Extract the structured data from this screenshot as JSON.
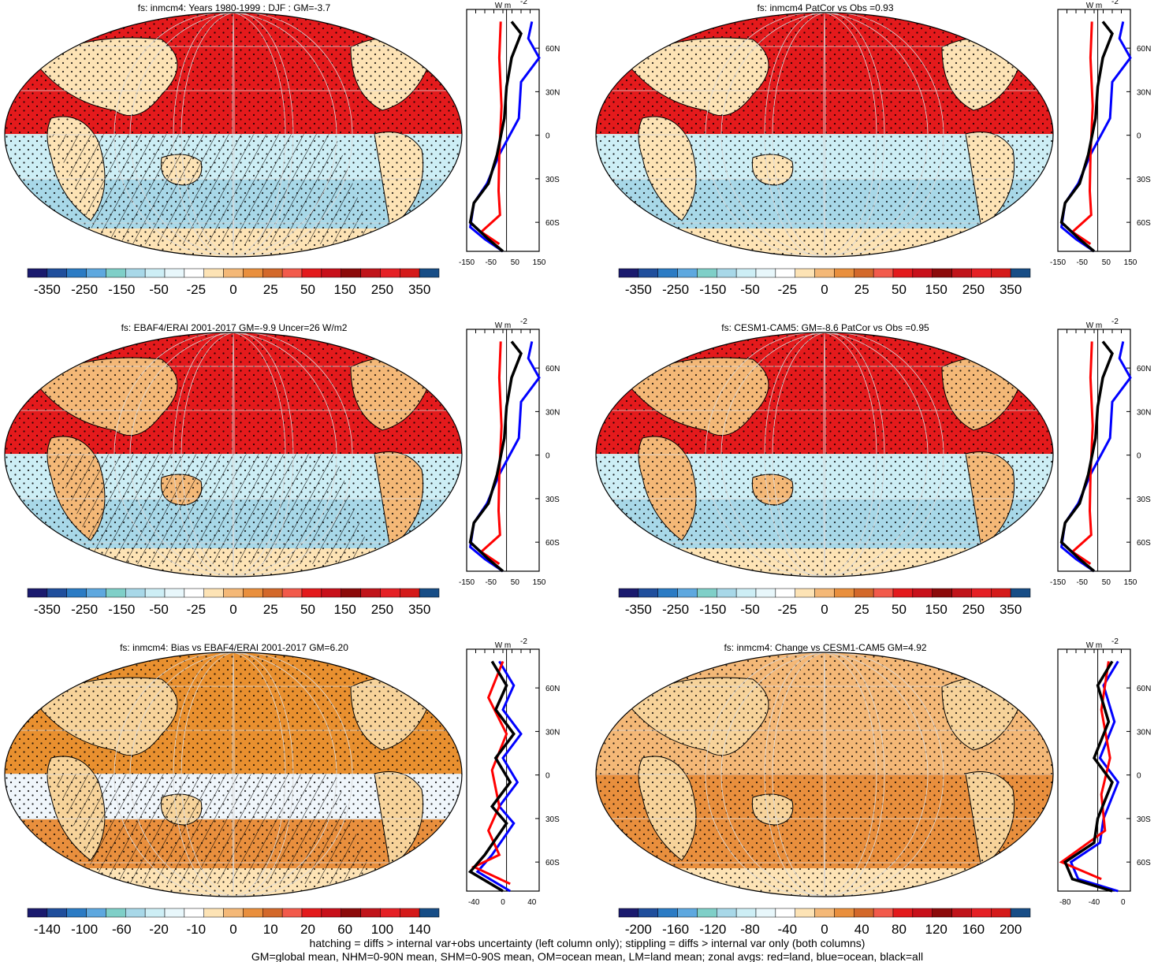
{
  "panels": [
    {
      "title": "fs: inmcm4: Years 1980-1999 : DJF : GM=-3.7",
      "colorbar_labels": [
        "-350",
        "-250",
        "-150",
        "-50",
        "-25",
        "0",
        "25",
        "50",
        "150",
        "250",
        "350"
      ],
      "zonal_ticks": [
        "-150",
        "-50",
        "50",
        "150"
      ],
      "lat_labels": [
        "60N",
        "30N",
        "0",
        "30S",
        "60S"
      ]
    },
    {
      "title": "fs: inmcm4 PatCor vs Obs =0.93",
      "colorbar_labels": [
        "-350",
        "-250",
        "-150",
        "-50",
        "-25",
        "0",
        "25",
        "50",
        "150",
        "250",
        "350"
      ],
      "zonal_ticks": [
        "-150",
        "-50",
        "50",
        "150"
      ],
      "lat_labels": [
        "60N",
        "30N",
        "0",
        "30S",
        "60S"
      ]
    },
    {
      "title": "fs: EBAF4/ERAI 2001-2017 GM=-9.9 Uncer=26 W/m2",
      "colorbar_labels": [
        "-350",
        "-250",
        "-150",
        "-50",
        "-25",
        "0",
        "25",
        "50",
        "150",
        "250",
        "350"
      ],
      "zonal_ticks": [
        "-150",
        "-50",
        "50",
        "150"
      ],
      "lat_labels": [
        "60N",
        "30N",
        "0",
        "30S",
        "60S"
      ]
    },
    {
      "title": "fs: CESM1-CAM5: GM=-8.6 PatCor vs Obs =0.95",
      "colorbar_labels": [
        "-350",
        "-250",
        "-150",
        "-50",
        "-25",
        "0",
        "25",
        "50",
        "150",
        "250",
        "350"
      ],
      "zonal_ticks": [
        "-150",
        "-50",
        "50",
        "150"
      ],
      "lat_labels": [
        "60N",
        "30N",
        "0",
        "30S",
        "60S"
      ]
    },
    {
      "title": "fs: inmcm4: Bias vs EBAF4/ERAI 2001-2017 GM=6.20",
      "colorbar_labels": [
        "-140",
        "-100",
        "-60",
        "-20",
        "-10",
        "0",
        "10",
        "20",
        "60",
        "100",
        "140"
      ],
      "zonal_ticks": [
        "-40",
        "0",
        "40"
      ],
      "lat_labels": [
        "60N",
        "30N",
        "0",
        "30S",
        "60S"
      ]
    },
    {
      "title": "fs: inmcm4: Change vs CESM1-CAM5 GM=4.92",
      "colorbar_labels": [
        "-200",
        "-160",
        "-120",
        "-80",
        "-40",
        "0",
        "40",
        "80",
        "120",
        "160",
        "200"
      ],
      "zonal_ticks": [
        "-80",
        "-40",
        "0"
      ],
      "lat_labels": [
        "60N",
        "30N",
        "0",
        "30S",
        "60S"
      ]
    }
  ],
  "zonal_unit": "W m",
  "zonal_unit_exp": "-2",
  "colorbar_colors": [
    "#1a1a6e",
    "#1f4e9c",
    "#2b7bc4",
    "#5ea8df",
    "#7fcfc8",
    "#a8d8e8",
    "#cdeef5",
    "#e8f7fb",
    "#ffffff",
    "#fde3b5",
    "#f4b877",
    "#e98f3d",
    "#d3682a",
    "#f25a4b",
    "#e31a1c",
    "#c8101a",
    "#8c0a0a",
    "#c0141a",
    "#e52025",
    "#d41a1a",
    "#174d86"
  ],
  "line_colors": {
    "land": "#ff0000",
    "ocean": "#0000ff",
    "all": "#000000"
  },
  "footer": {
    "line1": "hatching = diffs > internal var+obs uncertainty (left column only); stippling = diffs > internal var only (both columns)",
    "line2": "GM=global mean, NHM=0-90N mean, SHM=0-90S mean, OM=ocean mean, LM=land mean; zonal avgs: red=land, blue=ocean, black=all"
  }
}
